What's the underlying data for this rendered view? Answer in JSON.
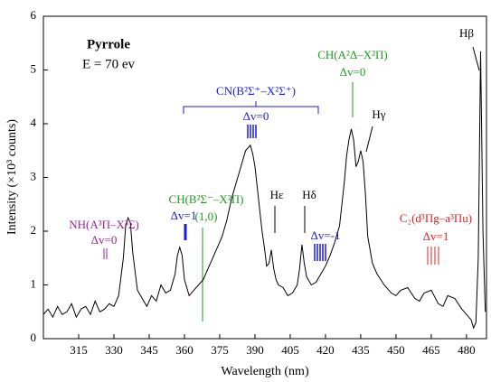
{
  "chart_data": {
    "type": "line",
    "xlabel": "Wavelength (nm)",
    "ylabel": "Intensity (×10³ counts)",
    "xlim": [
      300,
      488.5
    ],
    "ylim": [
      0,
      6
    ],
    "xticks": [
      315,
      330,
      345,
      360,
      375,
      390,
      405,
      420,
      435,
      450,
      465,
      480
    ],
    "yticks": [
      0,
      1,
      2,
      3,
      4,
      5,
      6
    ],
    "color": "#000000",
    "x": [
      300,
      302,
      304,
      306,
      308,
      310,
      312,
      314,
      316,
      318,
      320,
      322,
      324,
      326,
      328,
      330,
      332,
      334,
      335,
      336,
      337,
      338,
      340,
      342,
      344,
      346,
      348,
      350,
      352,
      354,
      356,
      357,
      358,
      359,
      360,
      362,
      364,
      366,
      368,
      370,
      372,
      374,
      376,
      378,
      380,
      382,
      384,
      385,
      386,
      387,
      388,
      389,
      390,
      391,
      392,
      393,
      394,
      395,
      396,
      397,
      398,
      399,
      400,
      402,
      404,
      406,
      408,
      409,
      410,
      411,
      412,
      414,
      416,
      418,
      420,
      422,
      424,
      426,
      427,
      428,
      429,
      430,
      431,
      432,
      433,
      434,
      435,
      436,
      437,
      438,
      440,
      442,
      445,
      448,
      450,
      452,
      455,
      458,
      460,
      462,
      465,
      468,
      470,
      472,
      475,
      478,
      480,
      482,
      483,
      484,
      485,
      486,
      487,
      488
    ],
    "values": [
      0.45,
      0.55,
      0.4,
      0.6,
      0.45,
      0.5,
      0.65,
      0.4,
      0.55,
      0.6,
      0.45,
      0.7,
      0.5,
      0.55,
      0.65,
      0.6,
      0.8,
      1.5,
      2.1,
      2.25,
      2.15,
      1.6,
      0.9,
      0.75,
      0.6,
      0.8,
      0.7,
      1.0,
      0.85,
      0.9,
      1.2,
      1.55,
      1.7,
      1.55,
      1.1,
      0.8,
      0.9,
      1.0,
      1.1,
      1.3,
      1.5,
      1.7,
      1.9,
      2.2,
      2.6,
      2.9,
      3.2,
      3.35,
      3.5,
      3.55,
      3.6,
      3.45,
      3.2,
      2.8,
      2.4,
      2.0,
      1.7,
      1.35,
      1.4,
      1.65,
      1.3,
      1.1,
      1.0,
      0.95,
      0.8,
      0.85,
      1.0,
      1.3,
      1.75,
      1.4,
      1.15,
      1.0,
      1.05,
      1.2,
      1.35,
      1.55,
      1.8,
      2.1,
      2.5,
      2.9,
      3.4,
      3.7,
      3.9,
      3.7,
      3.2,
      3.3,
      3.5,
      3.3,
      2.7,
      1.9,
      1.4,
      1.2,
      1.0,
      0.85,
      0.8,
      0.9,
      0.95,
      0.75,
      0.7,
      0.85,
      0.9,
      0.65,
      0.6,
      0.8,
      0.75,
      0.55,
      0.45,
      0.35,
      0.2,
      0.3,
      1.5,
      5.35,
      2.0,
      0.5
    ],
    "annotations": [
      {
        "text": "Pyrrole",
        "color": "#000000"
      },
      {
        "text": "E = 70 ev",
        "color": "#000000"
      },
      {
        "text": "NH(A³Π–X³Σ)",
        "color": "#a020a0"
      },
      {
        "text": "Δv=0",
        "color": "#a020a0"
      },
      {
        "text": "Δv=1",
        "color": "#1a1ae6"
      },
      {
        "text": "CH(B²Σ⁻–X²Π)",
        "color": "#1f9a1f"
      },
      {
        "text": "(1,0)",
        "color": "#1f9a1f"
      },
      {
        "text": "CN(B²Σ⁺–X²Σ⁺)",
        "color": "#1a1ae6"
      },
      {
        "text": "Δv=0",
        "color": "#1a1ae6"
      },
      {
        "text": "Hε",
        "color": "#000000"
      },
      {
        "text": "Hδ",
        "color": "#000000"
      },
      {
        "text": "Δv=-1",
        "color": "#1a1ae6"
      },
      {
        "text": "CH(A²Δ–X²Π)",
        "color": "#1f9a1f"
      },
      {
        "text": "Δv=0",
        "color": "#1f9a1f"
      },
      {
        "text": "Hγ",
        "color": "#000000"
      },
      {
        "text": "Hβ",
        "color": "#000000"
      },
      {
        "text": "C₂(d³Πg–a³Πu)",
        "color": "#e02020"
      },
      {
        "text": "Δv=1",
        "color": "#e02020"
      }
    ]
  }
}
